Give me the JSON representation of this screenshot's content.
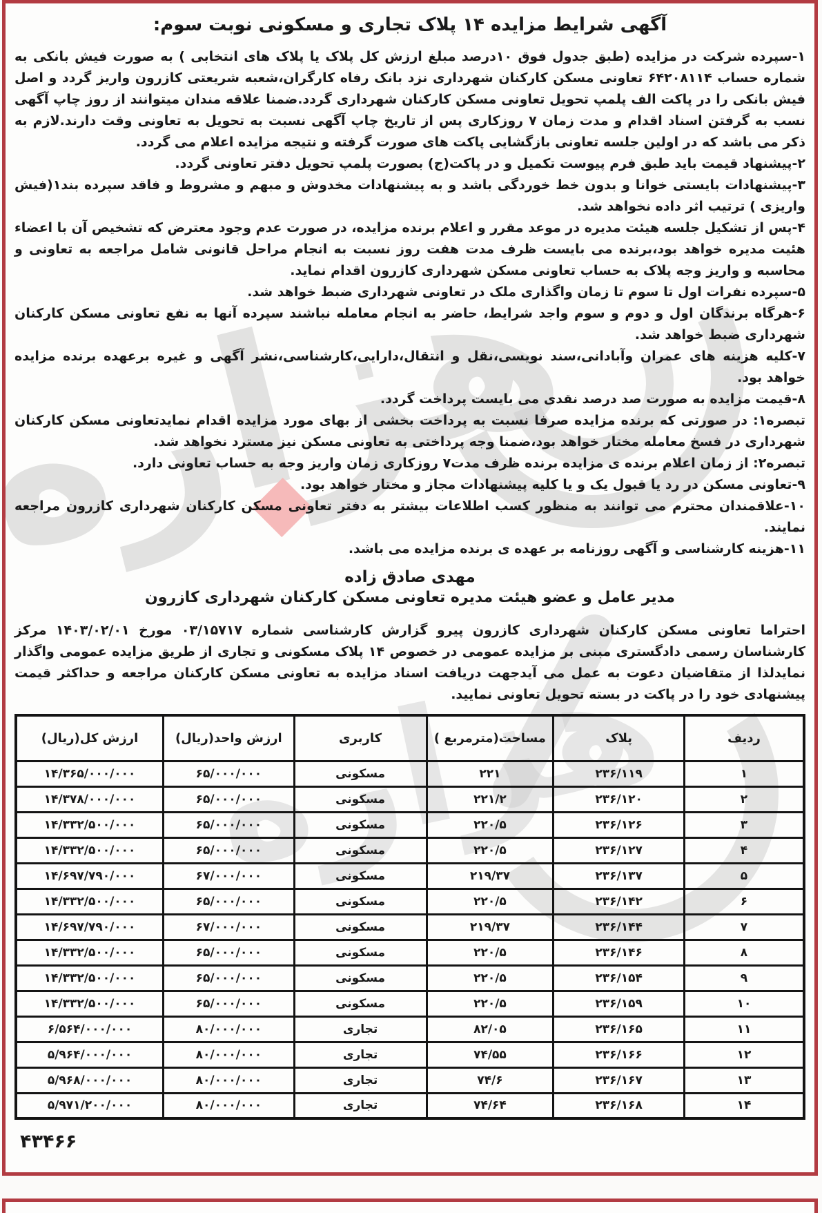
{
  "document": {
    "title": "آگهی شرایط مزایده ۱۴ پلاک تجاری و مسکونی نوبت سوم:",
    "terms": [
      "۱-سپرده شرکت در مزایده (طبق جدول فوق ۱۰درصد مبلغ ارزش کل پلاک یا پلاک های انتخابی ) به صورت فیش بانکی به شماره حساب ۶۴۲۰۸۱۱۴ تعاونی مسکن کارکنان شهرداری نزد بانک رفاه کارگران،شعبه شریعتی کازرون واریز گردد و اصل فیش بانکی را در پاکت الف پلمپ تحویل تعاونی مسکن کارکنان شهرداری گردد.ضمنا علاقه مندان میتوانند از روز چاپ آگهی نسب به گرفتن اسناد اقدام و مدت زمان ۷ روزکاری پس از تاریخ چاپ آگهی نسبت به تحویل به تعاونی وقت دارند.لازم به ذکر می باشد که در اولین جلسه تعاونی بازگشایی پاکت های صورت گرفته و نتیجه مزایده اعلام می گردد.",
      "۲-پیشنهاد قیمت باید طبق فرم پیوست تکمیل و در پاکت(ج) بصورت پلمپ تحویل دفتر تعاونی گردد.",
      "۳-پیشنهادات بایستی خوانا و بدون خط خوردگی باشد و به پیشنهادات مخدوش و مبهم و مشروط و فاقد سپرده بند۱(فیش واریزی ) ترتیب اثر داده نخواهد شد.",
      "۴-پس از تشکیل جلسه هیئت مدیره در موعد مقرر و اعلام برنده مزایده، در صورت عدم وجود معترض که تشخیص آن با اعضاء هئیت مدیره خواهد بود،برنده می بایست ظرف مدت هفت روز نسبت به انجام مراحل قانونی شامل مراجعه به تعاونی و محاسبه و واریز وجه پلاک به حساب تعاونی مسکن شهرداری کازرون اقدام نماید.",
      "۵-سپرده نفرات اول تا سوم تا زمان واگذاری ملک در تعاونی شهرداری ضبط خواهد شد.",
      "۶-هرگاه برندگان اول و دوم و سوم واجد شرایط، حاضر به انجام معامله نباشند سپرده آنها به نفع تعاونی مسکن کارکنان شهرداری ضبط خواهد شد.",
      "۷-کلیه هزینه های عمران وآبادانی،سند نویسی،نقل و انتقال،دارایی،کارشناسی،نشر آگهی و غیره برعهده برنده مزایده خواهد بود.",
      "۸-قیمت مزایده به صورت صد درصد نقدی می بایست پرداخت گردد.",
      "تبصره۱: در صورتی که برنده مزایده صرفا نسبت به پرداخت بخشی از بهای مورد مزایده اقدام نمایدتعاونی مسکن کارکنان شهرداری در فسخ معامله مختار خواهد بود،ضمنا وجه پرداختی به تعاونی مسکن نیز مسترد نخواهد شد.",
      "تبصره۲: از زمان اعلام برنده ی مزایده برنده ظرف مدت۷ روزکاری زمان واریز وجه به حساب تعاونی دارد.",
      "۹-تعاونی مسکن در رد یا قبول یک و یا کلیه پیشنهادات مجاز و مختار خواهد بود.",
      "۱۰-علاقمندان محترم می توانند به منظور کسب اطلاعات بیشتر به دفتر تعاونی مسکن کارکنان شهرداری کازرون مراجعه نمایند.",
      "۱۱-هزینه کارشناسی و آگهی روزنامه بر عهده ی برنده مزایده می باشد."
    ],
    "signature_name": "مهدی صادق زاده",
    "signature_role": "مدیر عامل و عضو هیئت مدیره تعاونی مسکن کارکنان شهرداری کازرون",
    "intro_paragraph": "احتراما تعاونی مسکن کارکنان شهرداری کازرون پیرو گزارش کارشناسی شماره ۰۳/۱۵۷۱۷ مورخ ۱۴۰۳/۰۲/۰۱ مرکز کارشناسان رسمی دادگستری مبنی بر مزایده عمومی در خصوص ۱۴ پلاک مسکونی و تجاری از طریق مزایده عمومی واگذار نمایدلذا از متقاضیان دعوت به عمل می آیدجهت دریافت اسناد مزایده به تعاونی مسکن کارکنان مراجعه و حداکثر قیمت پیشنهادی خود را در پاکت در بسته تحویل تعاونی نمایید.",
    "footer_code": "۴۳۴۶۶",
    "watermark_text": "هزاره"
  },
  "table": {
    "headers": [
      "ردیف",
      "پلاک",
      "مساحت(مترمربع )",
      "کاربری",
      "ارزش واحد(ریال)",
      "ارزش کل(ریال)"
    ],
    "rows": [
      [
        "۱",
        "۲۳۶/۱۱۹",
        "۲۲۱",
        "مسکونی",
        "۶۵/۰۰۰/۰۰۰",
        "۱۴/۳۶۵/۰۰۰/۰۰۰"
      ],
      [
        "۲",
        "۲۳۶/۱۲۰",
        "۲۲۱/۲",
        "مسکونی",
        "۶۵/۰۰۰/۰۰۰",
        "۱۴/۳۷۸/۰۰۰/۰۰۰"
      ],
      [
        "۳",
        "۲۳۶/۱۲۶",
        "۲۲۰/۵",
        "مسکونی",
        "۶۵/۰۰۰/۰۰۰",
        "۱۴/۳۳۲/۵۰۰/۰۰۰"
      ],
      [
        "۴",
        "۲۳۶/۱۲۷",
        "۲۲۰/۵",
        "مسکونی",
        "۶۵/۰۰۰/۰۰۰",
        "۱۴/۳۳۲/۵۰۰/۰۰۰"
      ],
      [
        "۵",
        "۲۳۶/۱۳۷",
        "۲۱۹/۳۷",
        "مسکونی",
        "۶۷/۰۰۰/۰۰۰",
        "۱۴/۶۹۷/۷۹۰/۰۰۰"
      ],
      [
        "۶",
        "۲۳۶/۱۴۲",
        "۲۲۰/۵",
        "مسکونی",
        "۶۵/۰۰۰/۰۰۰",
        "۱۴/۳۳۲/۵۰۰/۰۰۰"
      ],
      [
        "۷",
        "۲۳۶/۱۴۴",
        "۲۱۹/۳۷",
        "مسکونی",
        "۶۷/۰۰۰/۰۰۰",
        "۱۴/۶۹۷/۷۹۰/۰۰۰"
      ],
      [
        "۸",
        "۲۳۶/۱۴۶",
        "۲۲۰/۵",
        "مسکونی",
        "۶۵/۰۰۰/۰۰۰",
        "۱۴/۳۳۲/۵۰۰/۰۰۰"
      ],
      [
        "۹",
        "۲۳۶/۱۵۴",
        "۲۲۰/۵",
        "مسکونی",
        "۶۵/۰۰۰/۰۰۰",
        "۱۴/۳۳۲/۵۰۰/۰۰۰"
      ],
      [
        "۱۰",
        "۲۳۶/۱۵۹",
        "۲۲۰/۵",
        "مسکونی",
        "۶۵/۰۰۰/۰۰۰",
        "۱۴/۳۳۲/۵۰۰/۰۰۰"
      ],
      [
        "۱۱",
        "۲۳۶/۱۶۵",
        "۸۲/۰۵",
        "تجاری",
        "۸۰/۰۰۰/۰۰۰",
        "۶/۵۶۴/۰۰۰/۰۰۰"
      ],
      [
        "۱۲",
        "۲۳۶/۱۶۶",
        "۷۴/۵۵",
        "تجاری",
        "۸۰/۰۰۰/۰۰۰",
        "۵/۹۶۴/۰۰۰/۰۰۰"
      ],
      [
        "۱۳",
        "۲۳۶/۱۶۷",
        "۷۴/۶",
        "تجاری",
        "۸۰/۰۰۰/۰۰۰",
        "۵/۹۶۸/۰۰۰/۰۰۰"
      ],
      [
        "۱۴",
        "۲۳۶/۱۶۸",
        "۷۴/۶۴",
        "تجاری",
        "۸۰/۰۰۰/۰۰۰",
        "۵/۹۷۱/۲۰۰/۰۰۰"
      ]
    ]
  },
  "colors": {
    "border_red": "#b23b42",
    "table_border": "#141414",
    "watermark_gray": "#cccccc",
    "diamond_pink": "#f6baba"
  }
}
